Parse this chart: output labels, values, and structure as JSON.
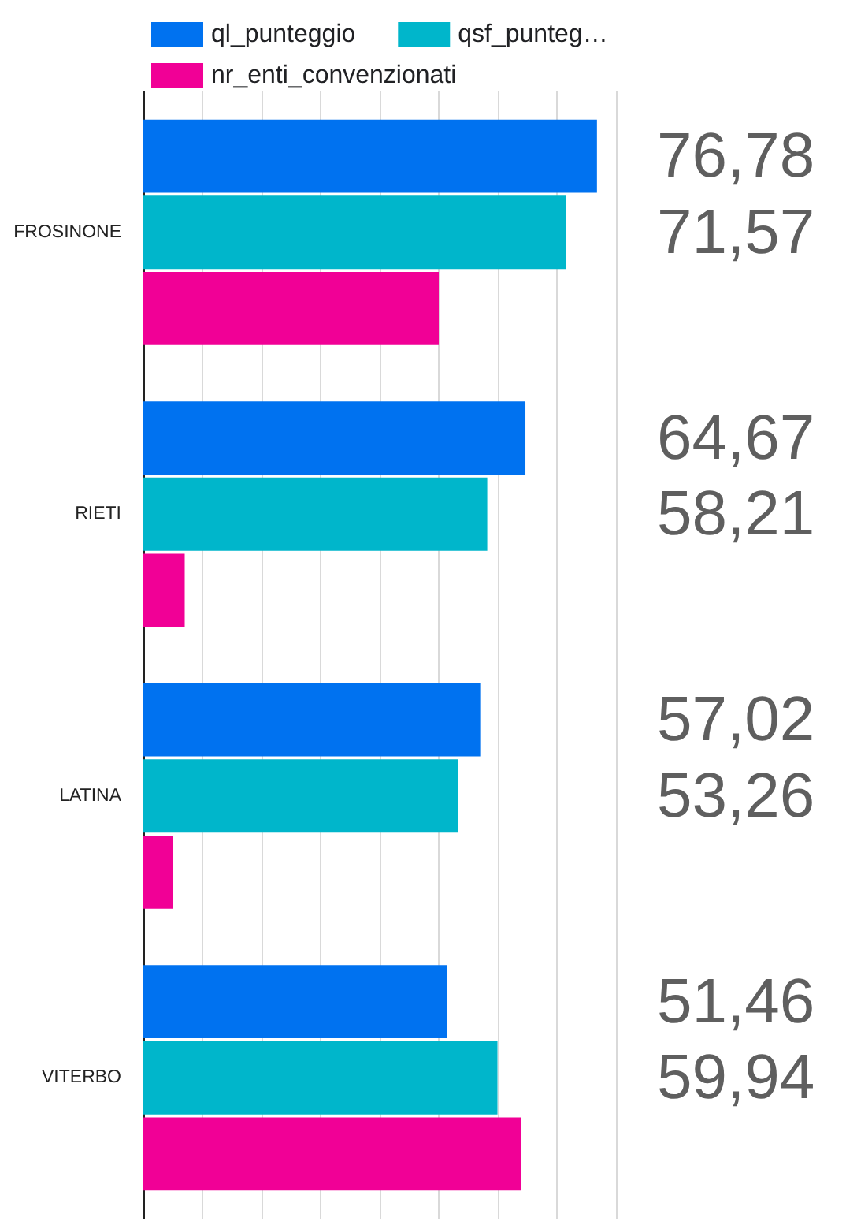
{
  "chart_data": {
    "type": "bar",
    "orientation": "horizontal",
    "categories": [
      "FROSINONE",
      "RIETI",
      "LATINA",
      "VITERBO"
    ],
    "series": [
      {
        "name": "ql_punteggio",
        "color": "#0072f0",
        "values": [
          76.78,
          64.67,
          57.02,
          51.46
        ],
        "value_labels": [
          "76,78",
          "64,67",
          "57,02",
          "51,46"
        ]
      },
      {
        "name": "qsf_punteg…",
        "color": "#00b6cb",
        "values": [
          71.57,
          58.21,
          53.26,
          59.94
        ],
        "value_labels": [
          "71,57",
          "58,21",
          "53,26",
          "59,94"
        ]
      },
      {
        "name": "nr_enti_convenzionati",
        "color": "#f10096",
        "values": [
          50,
          7,
          5,
          64
        ]
      }
    ],
    "xlim": [
      0,
      80
    ],
    "xticks": [
      {
        "value": 0,
        "label": null
      },
      {
        "value": 10,
        "label": null
      },
      {
        "value": 20,
        "label": null
      },
      {
        "value": 30,
        "label": null
      },
      {
        "value": 40,
        "label": null
      },
      {
        "value": 50,
        "label": null
      },
      {
        "value": 60,
        "label": null
      },
      {
        "value": 70,
        "label": null
      },
      {
        "value": 80,
        "label": null
      }
    ],
    "grid": "x",
    "legend": "top",
    "tick_labels": "y"
  }
}
